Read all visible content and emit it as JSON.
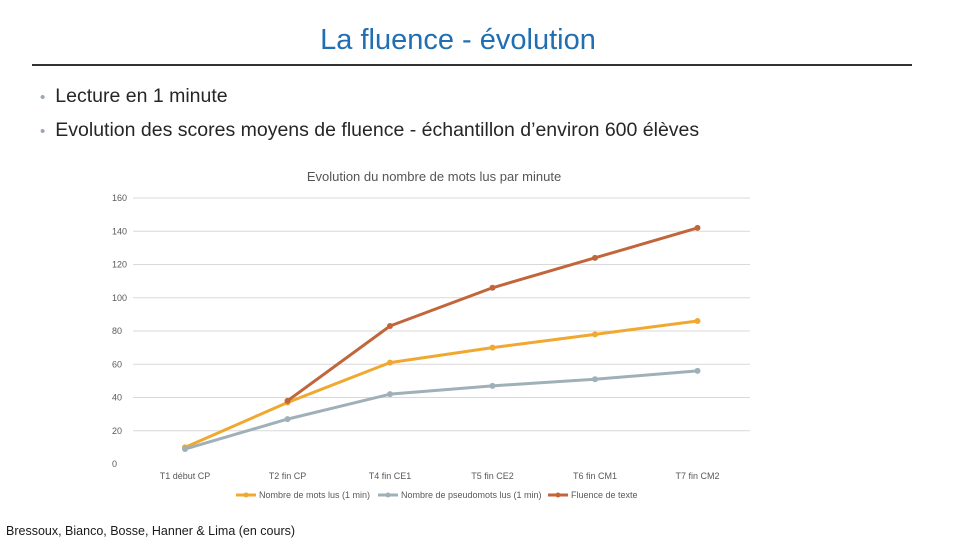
{
  "slide": {
    "title": "La fluence - évolution",
    "bullets": [
      "Lecture en 1 minute",
      "Evolution des scores moyens de fluence  - échantillon d’environ 600 élèves"
    ],
    "credit": "Bressoux, Bianco, Bosse, Hanner & Lima (en cours)"
  },
  "colors": {
    "title": "#1f6fb2",
    "series": [
      "#f0a830",
      "#9fb0b8",
      "#c1663a"
    ],
    "grid": "#d9d9d9"
  },
  "chart_data": {
    "type": "line",
    "title": "Evolution du nombre de mots lus par minute",
    "categories": [
      "T1 début CP",
      "T2 fin CP",
      "T4 fin CE1",
      "T5 fin CE2",
      "T6 fin CM1",
      "T7 fin CM2"
    ],
    "series": [
      {
        "name": "Nombre de mots lus (1 min)",
        "values": [
          10,
          37,
          61,
          70,
          78,
          86
        ]
      },
      {
        "name": "Nombre de pseudomots lus (1 min)",
        "values": [
          9,
          27,
          42,
          47,
          51,
          56
        ]
      },
      {
        "name": "Fluence de texte",
        "values": [
          null,
          38,
          83,
          106,
          124,
          142
        ]
      }
    ],
    "ylim": [
      0,
      160
    ],
    "yticks": [
      "0",
      "20",
      "40",
      "60",
      "80",
      "100",
      "120",
      "140",
      "160"
    ],
    "grid": true,
    "legend": "bottom"
  }
}
